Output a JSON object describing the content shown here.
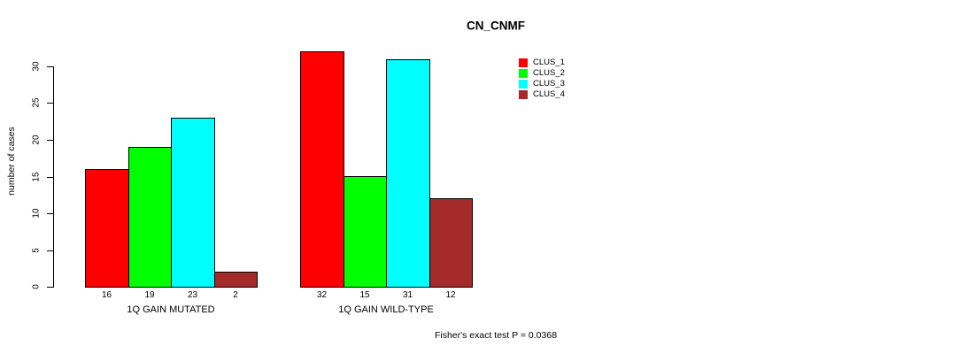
{
  "chart_data": {
    "type": "bar",
    "title": "CN_CNMF",
    "ylabel": "number of cases",
    "xlabel": "",
    "annotation": "Fisher's exact test P = 0.0368",
    "groups": [
      "1Q GAIN MUTATED",
      "1Q GAIN WILD-TYPE"
    ],
    "series": [
      {
        "name": "CLUS_1",
        "color": "#FF0000",
        "values": [
          16,
          32
        ]
      },
      {
        "name": "CLUS_2",
        "color": "#00FF00",
        "values": [
          19,
          15
        ]
      },
      {
        "name": "CLUS_3",
        "color": "#00FFFF",
        "values": [
          23,
          31
        ]
      },
      {
        "name": "CLUS_4",
        "color": "#A52A2A",
        "values": [
          2,
          12
        ]
      }
    ],
    "bar_value_labels": [
      [
        16,
        19,
        23,
        2
      ],
      [
        32,
        15,
        31,
        12
      ]
    ],
    "yticks": [
      0,
      5,
      10,
      15,
      20,
      25,
      30
    ],
    "ylim": [
      0,
      32
    ],
    "grid": false,
    "legend_position": "right",
    "background_color": "#FFFFFF",
    "axis_color": "#000000"
  }
}
